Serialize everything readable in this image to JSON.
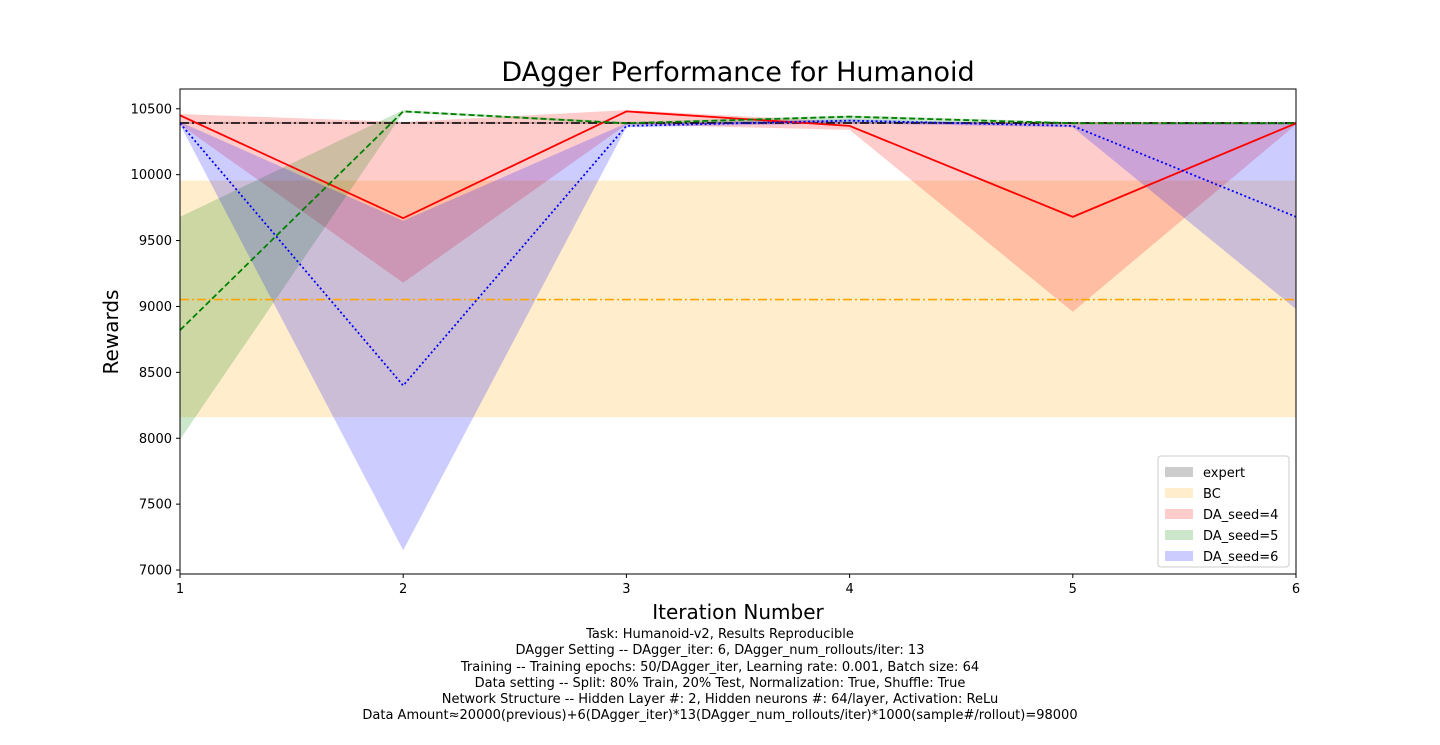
{
  "chart_data": {
    "type": "line",
    "title": "DAgger Performance for Humanoid",
    "xlabel": "Iteration Number",
    "ylabel": "Rewards",
    "xlim": [
      1,
      6
    ],
    "ylim": [
      6970,
      10650
    ],
    "x_ticks": [
      1,
      2,
      3,
      4,
      5,
      6
    ],
    "y_ticks": [
      7000,
      7500,
      8000,
      8500,
      9000,
      9500,
      10000,
      10500
    ],
    "grid": false,
    "legend_position": "lower-right",
    "legend": [
      "expert",
      "BC",
      "DA_seed=4",
      "DA_seed=5",
      "DA_seed=6"
    ],
    "expert": {
      "name": "expert",
      "mean": 10392,
      "lower": 10385,
      "upper": 10400,
      "color": "#000000",
      "band_color": "#808080"
    },
    "bc": {
      "name": "BC",
      "mean": 9052,
      "lower": 8160,
      "upper": 9955,
      "color": "#ffa500",
      "band_color": "#ffa500"
    },
    "series": [
      {
        "name": "DA_seed=4",
        "color": "#ff0000",
        "style": "solid",
        "x": [
          1,
          2,
          3,
          4,
          5,
          6
        ],
        "mean": [
          10450,
          9670,
          10480,
          10370,
          9680,
          10390
        ],
        "lower": [
          10380,
          9180,
          10380,
          10340,
          8960,
          10380
        ],
        "upper": [
          10460,
          10400,
          10490,
          10400,
          10400,
          10400
        ]
      },
      {
        "name": "DA_seed=5",
        "color": "#008000",
        "style": "dashed",
        "x": [
          1,
          2,
          3,
          4,
          5,
          6
        ],
        "mean": [
          8820,
          10480,
          10390,
          10440,
          10390,
          10390
        ],
        "lower": [
          7990,
          10470,
          10380,
          10400,
          10380,
          10380
        ],
        "upper": [
          9680,
          10490,
          10400,
          10450,
          10400,
          10400
        ]
      },
      {
        "name": "DA_seed=6",
        "color": "#0000ff",
        "style": "dotted",
        "x": [
          1,
          2,
          3,
          4,
          5,
          6
        ],
        "mean": [
          10390,
          8400,
          10370,
          10410,
          10370,
          9680
        ],
        "lower": [
          10380,
          7150,
          10360,
          10390,
          10360,
          8980
        ],
        "upper": [
          10400,
          9650,
          10390,
          10420,
          10380,
          10400
        ]
      }
    ]
  },
  "caption": {
    "lines": [
      "Task: Humanoid-v2, Results Reproducible",
      "DAgger Setting -- DAgger_iter: 6, DAgger_num_rollouts/iter: 13",
      "Training -- Training epochs: 50/DAgger_iter, Learning rate: 0.001, Batch size: 64",
      "Data setting -- Split: 80% Train, 20% Test, Normalization: True, Shuffle: True",
      "Network Structure -- Hidden Layer #: 2, Hidden neurons #: 64/layer, Activation: ReLu",
      "Data Amount≈20000(previous)+6(DAgger_iter)*13(DAgger_num_rollouts/iter)*1000(sample#/rollout)=98000"
    ]
  }
}
